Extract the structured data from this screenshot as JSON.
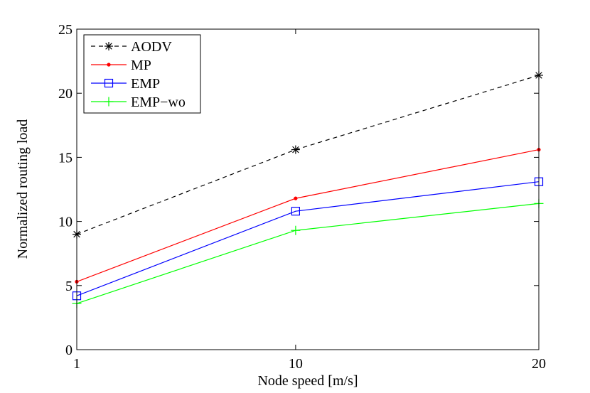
{
  "chart_data": {
    "type": "line",
    "title": "",
    "xlabel": "Node speed [m/s]",
    "ylabel": "Normalized routing load",
    "x": [
      1,
      10,
      20
    ],
    "x_tick_labels": [
      "1",
      "10",
      "20"
    ],
    "xlim": [
      1,
      20
    ],
    "ylim": [
      0,
      25
    ],
    "y_ticks": [
      0,
      5,
      10,
      15,
      20,
      25
    ],
    "y_tick_labels": [
      "0",
      "5",
      "10",
      "15",
      "20",
      "25"
    ],
    "grid": false,
    "legend_position": "top-left",
    "series": [
      {
        "name": "AODV",
        "values": [
          9.0,
          15.6,
          21.4
        ],
        "color": "#000000",
        "dash": "dashed",
        "marker": "asterisk"
      },
      {
        "name": "MP",
        "values": [
          5.3,
          11.8,
          15.6
        ],
        "color": "#ff0000",
        "dash": "solid",
        "marker": "dot"
      },
      {
        "name": "EMP",
        "values": [
          4.2,
          10.8,
          13.1
        ],
        "color": "#0000ff",
        "dash": "solid",
        "marker": "square"
      },
      {
        "name": "EMP−wo",
        "values": [
          3.6,
          9.3,
          11.4
        ],
        "color": "#00ff00",
        "dash": "solid",
        "marker": "plus"
      }
    ]
  }
}
